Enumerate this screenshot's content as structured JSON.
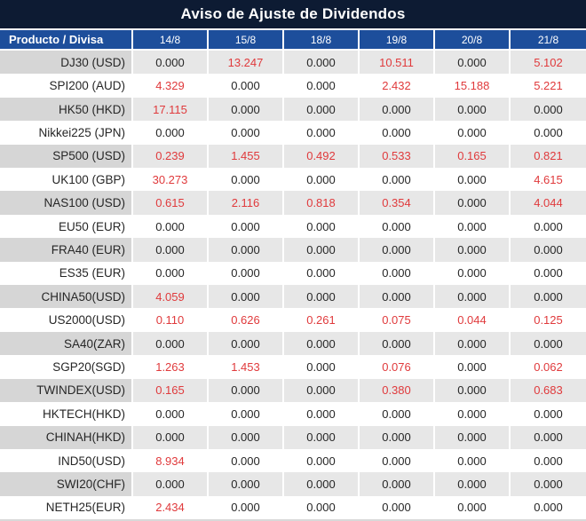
{
  "title": "Aviso de Ajuste de Dividendos",
  "colors": {
    "title_bg": "#0d1b33",
    "title_text": "#ffffff",
    "header_bg": "#1d4e9b",
    "header_text": "#ffffff",
    "row_grey_label": "#d6d6d6",
    "row_grey_value": "#e7e7e7",
    "row_white": "#ffffff",
    "value_zero": "#262626",
    "value_nonzero": "#e03a3c",
    "bottom_strip": "#d9d9d9"
  },
  "table": {
    "columns": [
      "Producto / Divisa",
      "14/8",
      "15/8",
      "18/8",
      "19/8",
      "20/8",
      "21/8"
    ],
    "rows": [
      {
        "product": "DJ30 (USD)",
        "values": [
          "0.000",
          "13.247",
          "0.000",
          "10.511",
          "0.000",
          "5.102"
        ]
      },
      {
        "product": "SPI200 (AUD)",
        "values": [
          "4.329",
          "0.000",
          "0.000",
          "2.432",
          "15.188",
          "5.221"
        ]
      },
      {
        "product": "HK50 (HKD)",
        "values": [
          "17.115",
          "0.000",
          "0.000",
          "0.000",
          "0.000",
          "0.000"
        ]
      },
      {
        "product": "Nikkei225 (JPN)",
        "values": [
          "0.000",
          "0.000",
          "0.000",
          "0.000",
          "0.000",
          "0.000"
        ]
      },
      {
        "product": "SP500 (USD)",
        "values": [
          "0.239",
          "1.455",
          "0.492",
          "0.533",
          "0.165",
          "0.821"
        ]
      },
      {
        "product": "UK100 (GBP)",
        "values": [
          "30.273",
          "0.000",
          "0.000",
          "0.000",
          "0.000",
          "4.615"
        ]
      },
      {
        "product": "NAS100 (USD)",
        "values": [
          "0.615",
          "2.116",
          "0.818",
          "0.354",
          "0.000",
          "4.044"
        ]
      },
      {
        "product": "EU50 (EUR)",
        "values": [
          "0.000",
          "0.000",
          "0.000",
          "0.000",
          "0.000",
          "0.000"
        ]
      },
      {
        "product": "FRA40 (EUR)",
        "values": [
          "0.000",
          "0.000",
          "0.000",
          "0.000",
          "0.000",
          "0.000"
        ]
      },
      {
        "product": "ES35 (EUR)",
        "values": [
          "0.000",
          "0.000",
          "0.000",
          "0.000",
          "0.000",
          "0.000"
        ]
      },
      {
        "product": "CHINA50(USD)",
        "values": [
          "4.059",
          "0.000",
          "0.000",
          "0.000",
          "0.000",
          "0.000"
        ]
      },
      {
        "product": "US2000(USD)",
        "values": [
          "0.110",
          "0.626",
          "0.261",
          "0.075",
          "0.044",
          "0.125"
        ]
      },
      {
        "product": "SA40(ZAR)",
        "values": [
          "0.000",
          "0.000",
          "0.000",
          "0.000",
          "0.000",
          "0.000"
        ]
      },
      {
        "product": "SGP20(SGD)",
        "values": [
          "1.263",
          "1.453",
          "0.000",
          "0.076",
          "0.000",
          "0.062"
        ]
      },
      {
        "product": "TWINDEX(USD)",
        "values": [
          "0.165",
          "0.000",
          "0.000",
          "0.380",
          "0.000",
          "0.683"
        ]
      },
      {
        "product": "HKTECH(HKD)",
        "values": [
          "0.000",
          "0.000",
          "0.000",
          "0.000",
          "0.000",
          "0.000"
        ]
      },
      {
        "product": "CHINAH(HKD)",
        "values": [
          "0.000",
          "0.000",
          "0.000",
          "0.000",
          "0.000",
          "0.000"
        ]
      },
      {
        "product": "IND50(USD)",
        "values": [
          "8.934",
          "0.000",
          "0.000",
          "0.000",
          "0.000",
          "0.000"
        ]
      },
      {
        "product": "SWI20(CHF)",
        "values": [
          "0.000",
          "0.000",
          "0.000",
          "0.000",
          "0.000",
          "0.000"
        ]
      },
      {
        "product": "NETH25(EUR)",
        "values": [
          "2.434",
          "0.000",
          "0.000",
          "0.000",
          "0.000",
          "0.000"
        ]
      }
    ]
  }
}
